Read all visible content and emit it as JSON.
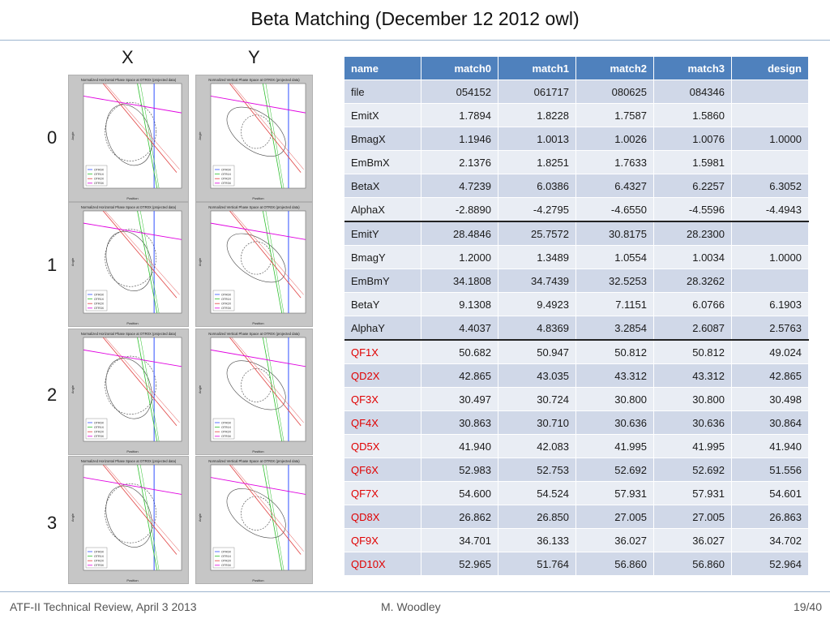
{
  "title": "Beta Matching (December 12 2012 owl)",
  "column_heads": [
    "X",
    "Y"
  ],
  "row_heads": [
    "0",
    "1",
    "2",
    "3"
  ],
  "plot_titles": {
    "x": "Normalized Horizontal Phase Space at OTR0X (projected data)",
    "y": "Normalized Vertical Phase Space at OTR0X (projected data)"
  },
  "plot_axis": {
    "xlabel": "Position",
    "ylabel": "Angle"
  },
  "plot_legend": [
    "OTR0X",
    "OTR1X",
    "OTR2X",
    "OTR3X"
  ],
  "plot_colors": {
    "OTR0X": "#3050ff",
    "OTR1X": "#30c030",
    "OTR2X": "#e04040",
    "OTR3X": "#e000e0"
  },
  "table": {
    "headers": [
      "name",
      "match0",
      "match1",
      "match2",
      "match3",
      "design"
    ],
    "rows": [
      [
        "file",
        "054152",
        "061717",
        "080625",
        "084346",
        ""
      ],
      [
        "EmitX",
        "1.7894",
        "1.8228",
        "1.7587",
        "1.5860",
        ""
      ],
      [
        "BmagX",
        "1.1946",
        "1.0013",
        "1.0026",
        "1.0076",
        "1.0000"
      ],
      [
        "EmBmX",
        "2.1376",
        "1.8251",
        "1.7633",
        "1.5981",
        ""
      ],
      [
        "BetaX",
        "4.7239",
        "6.0386",
        "6.4327",
        "6.2257",
        "6.3052"
      ],
      [
        "AlphaX",
        "-2.8890",
        "-4.2795",
        "-4.6550",
        "-4.5596",
        "-4.4943"
      ],
      [
        "EmitY",
        "28.4846",
        "25.7572",
        "30.8175",
        "28.2300",
        ""
      ],
      [
        "BmagY",
        "1.2000",
        "1.3489",
        "1.0554",
        "1.0034",
        "1.0000"
      ],
      [
        "EmBmY",
        "34.1808",
        "34.7439",
        "32.5253",
        "28.3262",
        ""
      ],
      [
        "BetaY",
        "9.1308",
        "9.4923",
        "7.1151",
        "6.0766",
        "6.1903"
      ],
      [
        "AlphaY",
        "4.4037",
        "4.8369",
        "3.2854",
        "2.6087",
        "2.5763"
      ],
      [
        "QF1X",
        "50.682",
        "50.947",
        "50.812",
        "50.812",
        "49.024"
      ],
      [
        "QD2X",
        "42.865",
        "43.035",
        "43.312",
        "43.312",
        "42.865"
      ],
      [
        "QF3X",
        "30.497",
        "30.724",
        "30.800",
        "30.800",
        "30.498"
      ],
      [
        "QF4X",
        "30.863",
        "30.710",
        "30.636",
        "30.636",
        "30.864"
      ],
      [
        "QD5X",
        "41.940",
        "42.083",
        "41.995",
        "41.995",
        "41.940"
      ],
      [
        "QF6X",
        "52.983",
        "52.753",
        "52.692",
        "52.692",
        "51.556"
      ],
      [
        "QF7X",
        "54.600",
        "54.524",
        "57.931",
        "57.931",
        "54.601"
      ],
      [
        "QD8X",
        "26.862",
        "26.850",
        "27.005",
        "27.005",
        "26.863"
      ],
      [
        "QF9X",
        "34.701",
        "36.133",
        "36.027",
        "36.027",
        "34.702"
      ],
      [
        "QD10X",
        "52.965",
        "51.764",
        "56.860",
        "56.860",
        "52.964"
      ]
    ],
    "red_from_row": 11,
    "separator_rows": [
      6,
      11
    ],
    "red_color": "#e00000"
  },
  "footer": {
    "left": "ATF-II Technical Review, April 3 2013",
    "center": "M. Woodley",
    "right": "19/40"
  }
}
